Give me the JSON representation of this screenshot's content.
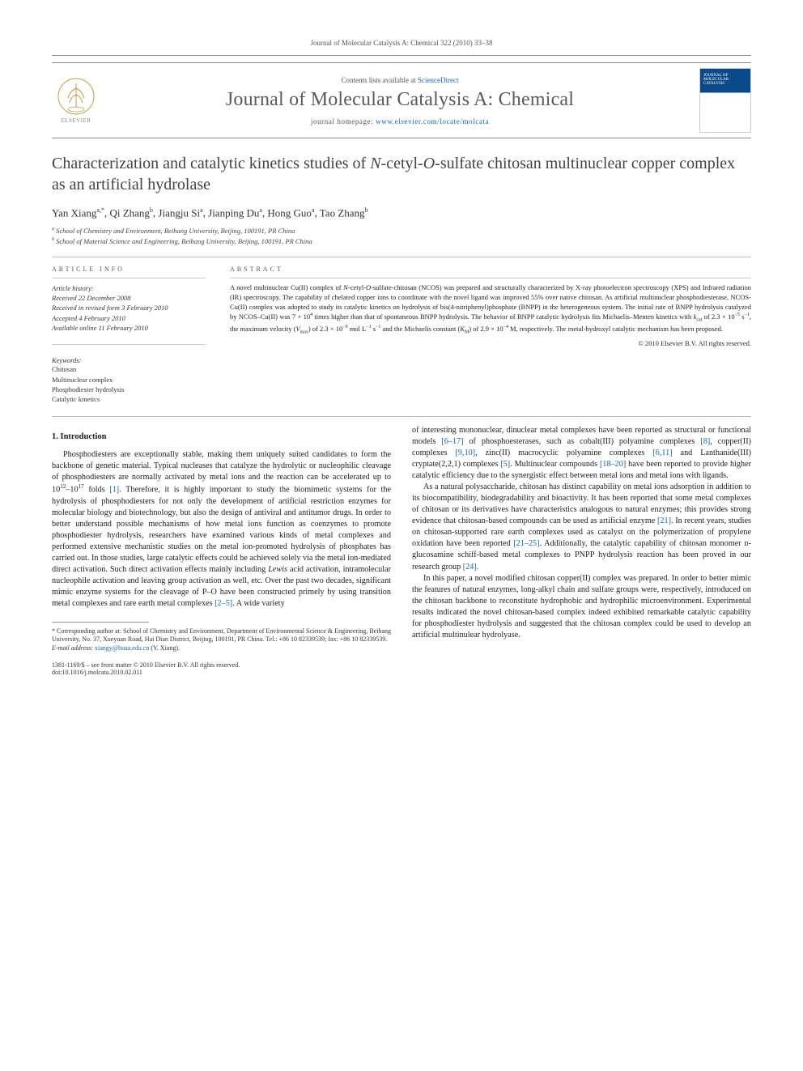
{
  "running_head": "Journal of Molecular Catalysis A: Chemical 322 (2010) 33–38",
  "masthead": {
    "contents_prefix": "Contents lists available at ",
    "contents_link": "ScienceDirect",
    "journal_name": "Journal of Molecular Catalysis A: Chemical",
    "homepage_prefix": "journal homepage: ",
    "homepage_url": "www.elsevier.com/locate/molcata",
    "publisher": "ELSEVIER"
  },
  "title_html": "Characterization and catalytic kinetics studies of <i>N</i>-cetyl-<i>O</i>-sulfate chitosan multinuclear copper complex as an artificial hydrolase",
  "authors_html": "Yan Xiang<span class='sup'>a,*</span>, Qi Zhang<span class='sup'>b</span>, Jiangju Si<span class='sup'>a</span>, Jianping Du<span class='sup'>a</span>, Hong Guo<span class='sup'>a</span>, Tao Zhang<span class='sup'>b</span>",
  "affiliations": {
    "a": "School of Chemistry and Environment, Beihang University, Beijing, 100191, PR China",
    "b": "School of Material Science and Engineering, Beihang University, Beijing, 100191, PR China"
  },
  "article_info": {
    "heading": "ARTICLE INFO",
    "history_label": "Article history:",
    "received": "Received 22 December 2008",
    "revised": "Received in revised form 3 February 2010",
    "accepted": "Accepted 4 February 2010",
    "online": "Available online 11 February 2010",
    "keywords_label": "Keywords:",
    "keywords": [
      "Chitosan",
      "Multinuclear complex",
      "Phosphodiester hydrolysis",
      "Catalytic kinetics"
    ]
  },
  "abstract": {
    "heading": "ABSTRACT",
    "text_html": "A novel multinuclear Cu(II) complex of <i>N</i>-cetyl-<i>O</i>-sulfate-chitosan (NCOS) was prepared and structurally characterized by X-ray photoelectron spectroscopy (XPS) and Infrared radiation (IR) spectroscopy. The capability of chelated copper ions to coordinate with the novel ligand was improved 55% over native chitosan. As artificial multinuclear phosphodiesterase, NCOS-Cu(II) complex was adopted to study its catalytic kinetics on hydrolysis of bis(4-nitriphenyl)phosphate (BNPP) in the heterogeneous system. The initial rate of BNPP hydrolysis catalyzed by NCOS–Cu(II) was 7 × 10<sup>4</sup> times higher than that of spontaneous BNPP hydrolysis. The behavior of BNPP catalytic hydrolysis fits Michaelis–Menten kinetics with <i>k</i><sub>cat</sub> of 2.3 × 10<sup>−5</sup> s<sup>−1</sup>, the maximum velocity (<i>V</i><sub>max</sub>) of 2.3 × 10<sup>−9</sup> mol L<sup>−1</sup> s<sup>−1</sup> and the Michaelis constant (<i>K</i><sub>M</sub>) of 2.9 × 10<sup>−4</sup> M, respectively. The metal-hydroxyl catalytic mechanism has been proposed.",
    "copyright": "© 2010 Elsevier B.V. All rights reserved."
  },
  "body": {
    "section_1": "1. Introduction",
    "col1_p1_html": "Phosphodiesters are exceptionally stable, making them uniquely suited candidates to form the backbone of genetic material. Typical nucleases that catalyze the hydrolytic or nucleophilic cleavage of phosphodiesters are normally activated by metal ions and the reaction can be accelerated up to 10<sup>12</sup>–10<sup>17</sup> folds <span class='cite'>[1]</span>. Therefore, it is highly important to study the biomimetic systems for the hydrolysis of phosphodiesters for not only the development of artificial restriction enzymes for molecular biology and biotechnology, but also the design of antiviral and antitumor drugs. In order to better understand possible mechanisms of how metal ions function as coenzymes to promote phosphodiester hydrolysis, researchers have examined various kinds of metal complexes and performed extensive mechanistic studies on the metal ion-promoted hydrolysis of phosphates has carried out. In those studies, large catalytic effects could be achieved solely via the metal ion-mediated direct activation. Such direct activation effects mainly including <i>Lewis</i> acid activation, intramolecular nucleophile activation and leaving group activation as well, etc. Over the past two decades, significant mimic enzyme systems for the cleavage of P–O have been constructed primely by using transition metal complexes and rare earth metal complexes <span class='cite'>[2–5]</span>. A wide variety",
    "col2_p1_html": "of interesting mononuclear, dinuclear metal complexes have been reported as structural or functional models <span class='cite'>[6–17]</span> of phosphoesterases, such as cobalt(III) polyamine complexes <span class='cite'>[8]</span>, copper(II) complexes <span class='cite'>[9,10]</span>, zinc(II) macrocyclic polyamine complexes <span class='cite'>[6,11]</span> and Lanthanide(III) cryptate(2,2,1) complexes <span class='cite'>[5]</span>. Multinuclear compounds <span class='cite'>[18–20]</span> have been reported to provide higher catalytic efficiency due to the synergistic effect between metal ions and metal ions with ligands.",
    "col2_p2_html": "As a natural polysaccharide, chitosan has distinct capability on metal ions adsorption in addition to its biocompatibility, biodegradability and bioactivity. It has been reported that some metal complexes of chitosan or its derivatives have characteristics analogous to natural enzymes; this provides strong evidence that chitosan-based compounds can be used as artificial enzyme <span class='cite'>[21]</span>. In recent years, studies on chitosan-supported rare earth complexes used as catalyst on the polymerization of propylene oxidation have been reported <span class='cite'>[21–25]</span>. Additionally, the catalytic capability of chitosan monomer ᴅ-glucosamine schiff-based metal complexes to PNPP hydrolysis reaction has been proved in our research group <span class='cite'>[24]</span>.",
    "col2_p3_html": "In this paper, a novel modified chitosan copper(II) complex was prepared. In order to better mimic the features of natural enzymes, long-alkyl chain and sulfate groups were, respectively, introduced on the chitosan backbone to reconstitute hydrophobic and hydrophilic microenvironment. Experimental results indicated the novel chitosan-based complex indeed exhibited remarkable catalytic capability for phosphodiester hydrolysis and suggested that the chitosan complex could be used to develop an artificial multinulear hydrolyase."
  },
  "footnotes": {
    "corresponding_html": "* Corresponding author at: School of Chemistry and Environment, Department of Environmental Science &amp; Engineering, Beihang University, No. 37, Xueyuan Road, Hai Dian District, Beijing, 100191, PR China. Tel.: +86 10 82339539; fax: +86 10 82339539.",
    "email_label": "E-mail address:",
    "email": "xiangy@buaa.edu.cn",
    "email_person": "(Y. Xiang)."
  },
  "footer": {
    "issn_line": "1381-1169/$ – see front matter © 2010 Elsevier B.V. All rights reserved.",
    "doi": "doi:10.1016/j.molcata.2010.02.011"
  },
  "colors": {
    "link": "#1764b8",
    "text": "#2a2a2a",
    "rule": "#999999",
    "cover_blue": "#0a4a8a"
  }
}
